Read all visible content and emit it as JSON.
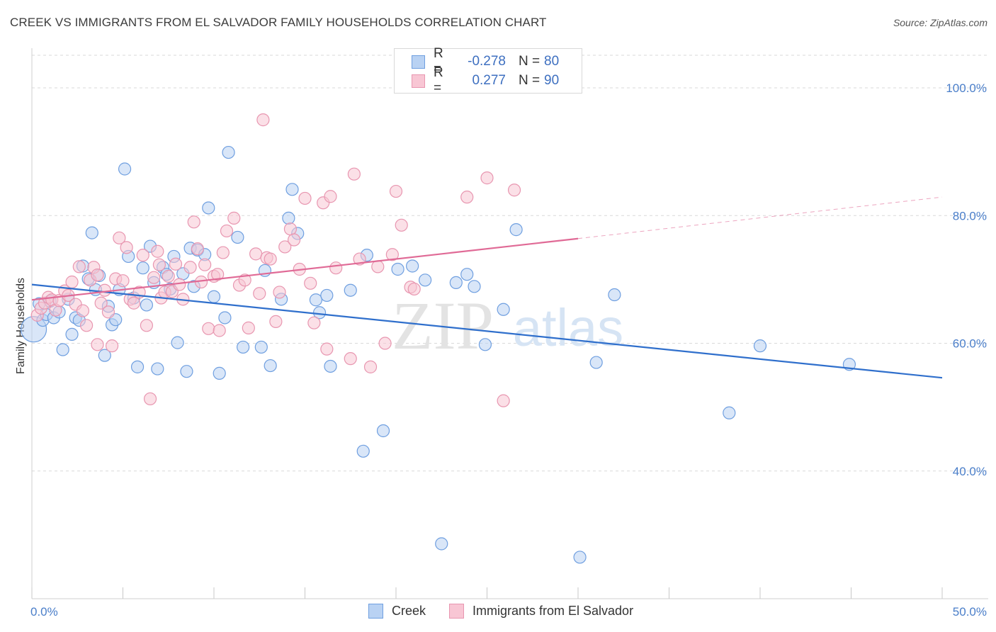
{
  "header": {
    "title": "CREEK VS IMMIGRANTS FROM EL SALVADOR FAMILY HOUSEHOLDS CORRELATION CHART",
    "source": "Source: ZipAtlas.com"
  },
  "watermark": {
    "zip": "ZIP",
    "atlas": "atlas"
  },
  "legend": {
    "rows": [
      {
        "r_label": "R =",
        "r_value": "-0.278",
        "n_label": "N =",
        "n_value": "80"
      },
      {
        "r_label": "R =",
        "r_value": "0.277",
        "n_label": "N =",
        "n_value": "90"
      }
    ]
  },
  "colors": {
    "creek_fill": "#b9d2f3",
    "creek_stroke": "#6f9fe0",
    "creek_line": "#2f6fcc",
    "salv_fill": "#f8c6d4",
    "salv_stroke": "#e896b0",
    "salv_line": "#e06a96",
    "grid": "#d9d9d9",
    "tick_text": "#4a7ec9"
  },
  "chart_data": {
    "type": "scatter",
    "title": "CREEK VS IMMIGRANTS FROM EL SALVADOR FAMILY HOUSEHOLDS CORRELATION CHART",
    "xlabel": "",
    "ylabel": "Family Households",
    "xlim": [
      0,
      50
    ],
    "ylim": [
      20,
      104
    ],
    "x_tick_labels": [
      "0.0%",
      "50.0%"
    ],
    "y_ticks": [
      40,
      60,
      80,
      100
    ],
    "y_tick_labels": [
      "40.0%",
      "60.0%",
      "80.0%",
      "100.0%"
    ],
    "grid": true,
    "legend_position": "top-center",
    "series": [
      {
        "name": "Creek",
        "r": -0.278,
        "n": 80,
        "trend": {
          "x": [
            0,
            50
          ],
          "y": [
            69.2,
            54.6
          ]
        },
        "points": [
          [
            0.1,
            62.2
          ],
          [
            0.4,
            66.2
          ],
          [
            0.6,
            63.6
          ],
          [
            0.8,
            64.5
          ],
          [
            1.0,
            66.6
          ],
          [
            1.2,
            64.0
          ],
          [
            1.5,
            64.9
          ],
          [
            1.7,
            59.0
          ],
          [
            2.0,
            66.9
          ],
          [
            2.2,
            61.4
          ],
          [
            2.4,
            64.0
          ],
          [
            2.6,
            63.6
          ],
          [
            2.8,
            72.1
          ],
          [
            3.1,
            70.1
          ],
          [
            3.3,
            77.3
          ],
          [
            3.5,
            68.4
          ],
          [
            3.7,
            70.6
          ],
          [
            4.0,
            58.1
          ],
          [
            4.2,
            65.8
          ],
          [
            4.4,
            62.9
          ],
          [
            4.6,
            63.7
          ],
          [
            4.8,
            68.4
          ],
          [
            5.1,
            87.3
          ],
          [
            5.3,
            73.6
          ],
          [
            5.6,
            67.1
          ],
          [
            5.8,
            56.3
          ],
          [
            6.1,
            71.8
          ],
          [
            6.3,
            66.0
          ],
          [
            6.5,
            75.2
          ],
          [
            6.7,
            69.5
          ],
          [
            6.9,
            56.0
          ],
          [
            7.2,
            71.9
          ],
          [
            7.4,
            70.8
          ],
          [
            7.6,
            68.5
          ],
          [
            7.8,
            73.6
          ],
          [
            8.0,
            60.1
          ],
          [
            8.3,
            70.9
          ],
          [
            8.5,
            55.6
          ],
          [
            8.7,
            74.9
          ],
          [
            8.9,
            68.9
          ],
          [
            9.1,
            74.6
          ],
          [
            9.5,
            73.9
          ],
          [
            9.7,
            81.2
          ],
          [
            10.0,
            67.3
          ],
          [
            10.3,
            55.3
          ],
          [
            10.6,
            64.0
          ],
          [
            10.8,
            89.9
          ],
          [
            11.3,
            76.6
          ],
          [
            11.6,
            59.4
          ],
          [
            12.6,
            59.4
          ],
          [
            12.8,
            71.4
          ],
          [
            13.1,
            56.5
          ],
          [
            13.7,
            66.9
          ],
          [
            14.1,
            79.6
          ],
          [
            14.3,
            84.1
          ],
          [
            14.6,
            77.2
          ],
          [
            15.6,
            66.8
          ],
          [
            15.8,
            64.8
          ],
          [
            16.2,
            67.5
          ],
          [
            16.4,
            56.4
          ],
          [
            17.5,
            68.3
          ],
          [
            18.2,
            43.1
          ],
          [
            18.4,
            73.8
          ],
          [
            19.3,
            46.3
          ],
          [
            20.1,
            71.6
          ],
          [
            20.9,
            72.1
          ],
          [
            21.6,
            69.9
          ],
          [
            22.5,
            28.6
          ],
          [
            23.3,
            69.5
          ],
          [
            23.9,
            70.8
          ],
          [
            24.3,
            68.9
          ],
          [
            24.9,
            59.8
          ],
          [
            25.9,
            65.3
          ],
          [
            26.6,
            77.8
          ],
          [
            30.1,
            26.5
          ],
          [
            31.0,
            57.0
          ],
          [
            32.0,
            67.6
          ],
          [
            38.3,
            49.1
          ],
          [
            40.0,
            59.6
          ],
          [
            44.9,
            56.7
          ]
        ]
      },
      {
        "name": "Immigrants from El Salvador",
        "r": 0.277,
        "n": 90,
        "trend": {
          "x": [
            0,
            30
          ],
          "y": [
            66.8,
            76.4
          ]
        },
        "trend_dashed": {
          "x": [
            30,
            50
          ],
          "y": [
            76.4,
            82.9
          ]
        },
        "points": [
          [
            0.3,
            64.4
          ],
          [
            0.5,
            65.5
          ],
          [
            0.7,
            66.3
          ],
          [
            0.9,
            67.2
          ],
          [
            1.1,
            66.8
          ],
          [
            1.3,
            65.2
          ],
          [
            1.5,
            66.7
          ],
          [
            1.8,
            68.2
          ],
          [
            2.0,
            67.5
          ],
          [
            2.2,
            69.6
          ],
          [
            2.4,
            66.1
          ],
          [
            2.6,
            72.0
          ],
          [
            2.8,
            65.1
          ],
          [
            3.0,
            62.8
          ],
          [
            3.2,
            69.9
          ],
          [
            3.4,
            71.9
          ],
          [
            3.6,
            70.7
          ],
          [
            3.8,
            66.3
          ],
          [
            4.0,
            68.3
          ],
          [
            4.2,
            64.9
          ],
          [
            4.4,
            59.6
          ],
          [
            4.6,
            70.1
          ],
          [
            4.8,
            76.5
          ],
          [
            5.0,
            69.8
          ],
          [
            5.2,
            75.0
          ],
          [
            5.4,
            66.9
          ],
          [
            5.6,
            66.3
          ],
          [
            5.9,
            68.0
          ],
          [
            6.1,
            73.8
          ],
          [
            6.3,
            62.8
          ],
          [
            6.5,
            51.3
          ],
          [
            6.7,
            70.3
          ],
          [
            6.9,
            74.4
          ],
          [
            7.1,
            67.1
          ],
          [
            7.3,
            68.0
          ],
          [
            7.5,
            70.5
          ],
          [
            7.7,
            68.1
          ],
          [
            7.9,
            72.4
          ],
          [
            8.1,
            69.2
          ],
          [
            8.3,
            66.9
          ],
          [
            8.7,
            71.9
          ],
          [
            8.9,
            79.0
          ],
          [
            9.1,
            74.8
          ],
          [
            9.3,
            69.6
          ],
          [
            9.5,
            72.3
          ],
          [
            9.7,
            62.3
          ],
          [
            10.0,
            70.5
          ],
          [
            10.2,
            70.8
          ],
          [
            10.3,
            62.0
          ],
          [
            10.5,
            74.2
          ],
          [
            10.7,
            77.6
          ],
          [
            11.1,
            79.6
          ],
          [
            11.4,
            69.1
          ],
          [
            11.7,
            69.9
          ],
          [
            11.9,
            62.4
          ],
          [
            12.3,
            74.0
          ],
          [
            12.5,
            67.8
          ],
          [
            12.7,
            95.0
          ],
          [
            12.9,
            73.4
          ],
          [
            13.1,
            73.2
          ],
          [
            13.4,
            63.4
          ],
          [
            13.6,
            68.0
          ],
          [
            13.9,
            75.1
          ],
          [
            14.2,
            77.9
          ],
          [
            14.7,
            71.6
          ],
          [
            15.0,
            82.7
          ],
          [
            15.3,
            69.4
          ],
          [
            15.5,
            63.2
          ],
          [
            16.0,
            82.0
          ],
          [
            16.2,
            59.1
          ],
          [
            16.4,
            83.0
          ],
          [
            16.7,
            71.8
          ],
          [
            17.5,
            57.6
          ],
          [
            17.7,
            86.5
          ],
          [
            18.0,
            73.2
          ],
          [
            18.6,
            56.3
          ],
          [
            19.0,
            72.0
          ],
          [
            19.4,
            60.0
          ],
          [
            19.8,
            73.9
          ],
          [
            20.0,
            83.8
          ],
          [
            20.3,
            78.5
          ],
          [
            20.8,
            68.8
          ],
          [
            21.0,
            68.5
          ],
          [
            23.9,
            82.9
          ],
          [
            25.0,
            85.9
          ],
          [
            25.9,
            51.0
          ],
          [
            26.5,
            84.0
          ],
          [
            14.4,
            76.2
          ],
          [
            7.0,
            72.3
          ],
          [
            3.6,
            59.8
          ]
        ]
      }
    ]
  }
}
